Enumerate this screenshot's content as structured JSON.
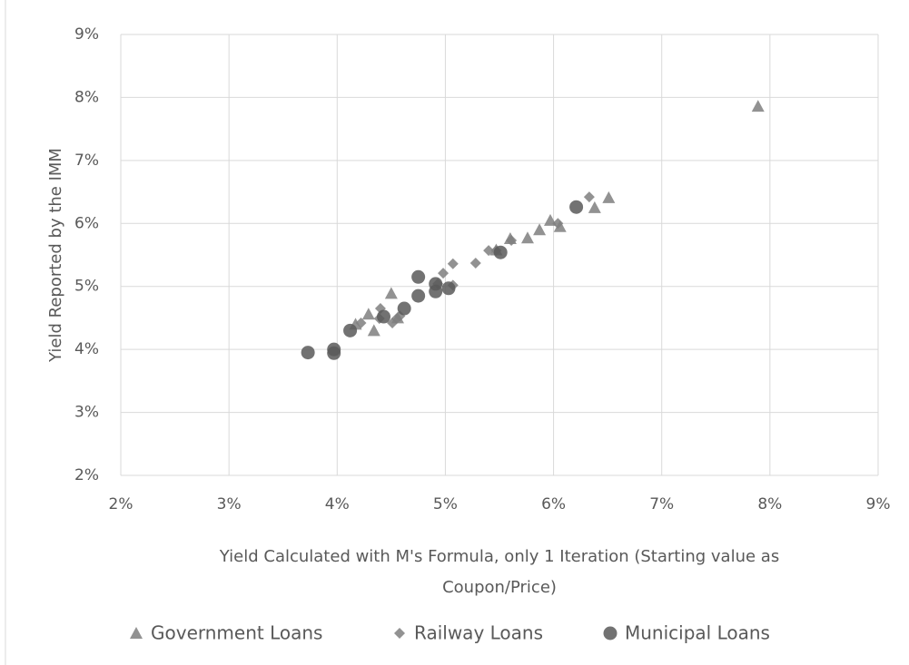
{
  "chart_data": {
    "type": "scatter",
    "xlabel_lines": [
      "Yield Calculated with M's Formula, only 1 Iteration (Starting value as",
      "Coupon/Price)"
    ],
    "ylabel": "Yield Reported by the IMM",
    "xlim": [
      2,
      9
    ],
    "xticks": [
      {
        "value": 2,
        "label": "2%"
      },
      {
        "value": 3,
        "label": "3%"
      },
      {
        "value": 4,
        "label": "4%"
      },
      {
        "value": 5,
        "label": "5%"
      },
      {
        "value": 6,
        "label": "6%"
      },
      {
        "value": 7,
        "label": "7%"
      },
      {
        "value": 8,
        "label": "8%"
      },
      {
        "value": 9,
        "label": "9%"
      }
    ],
    "ylim": [
      2,
      9
    ],
    "yticks": [
      {
        "value": 2,
        "label": "2%"
      },
      {
        "value": 3,
        "label": "3%"
      },
      {
        "value": 4,
        "label": "4%"
      },
      {
        "value": 5,
        "label": "5%"
      },
      {
        "value": 6,
        "label": "6%"
      },
      {
        "value": 7,
        "label": "7%"
      },
      {
        "value": 8,
        "label": "8%"
      },
      {
        "value": 9,
        "label": "9%"
      }
    ],
    "grid": true,
    "legend": "bottom",
    "series": [
      {
        "name": "Government Loans",
        "color": "#7f7f7f",
        "marker": "triangle",
        "x": [
          7.89,
          6.51,
          6.38,
          5.97,
          6.06,
          5.87,
          5.76,
          5.6,
          5.47,
          4.5,
          4.29,
          4.34,
          4.17,
          4.56
        ],
        "y": [
          7.86,
          6.41,
          6.25,
          6.05,
          5.95,
          5.9,
          5.77,
          5.76,
          5.58,
          4.89,
          4.56,
          4.3,
          4.4,
          4.5
        ]
      },
      {
        "name": "Railway Loans",
        "color": "#7f7f7f",
        "marker": "diamond",
        "x": [
          6.33,
          6.04,
          5.61,
          5.47,
          5.4,
          5.28,
          5.07,
          5.07,
          4.98,
          4.93,
          4.39,
          4.51,
          4.55,
          4.58,
          4.22,
          4.4
        ],
        "y": [
          6.42,
          6.0,
          5.73,
          5.57,
          5.57,
          5.37,
          5.36,
          5.02,
          5.21,
          5.04,
          4.49,
          4.42,
          4.49,
          4.53,
          4.42,
          4.65
        ]
      },
      {
        "name": "Municipal Loans",
        "color": "#595959",
        "marker": "circle",
        "x": [
          6.21,
          5.51,
          5.03,
          4.91,
          4.91,
          4.75,
          4.75,
          4.62,
          4.43,
          4.12,
          3.73,
          3.97,
          3.97
        ],
        "y": [
          6.26,
          5.54,
          4.97,
          5.04,
          4.92,
          5.15,
          4.85,
          4.65,
          4.52,
          4.3,
          3.95,
          4.0,
          3.94
        ]
      }
    ]
  }
}
